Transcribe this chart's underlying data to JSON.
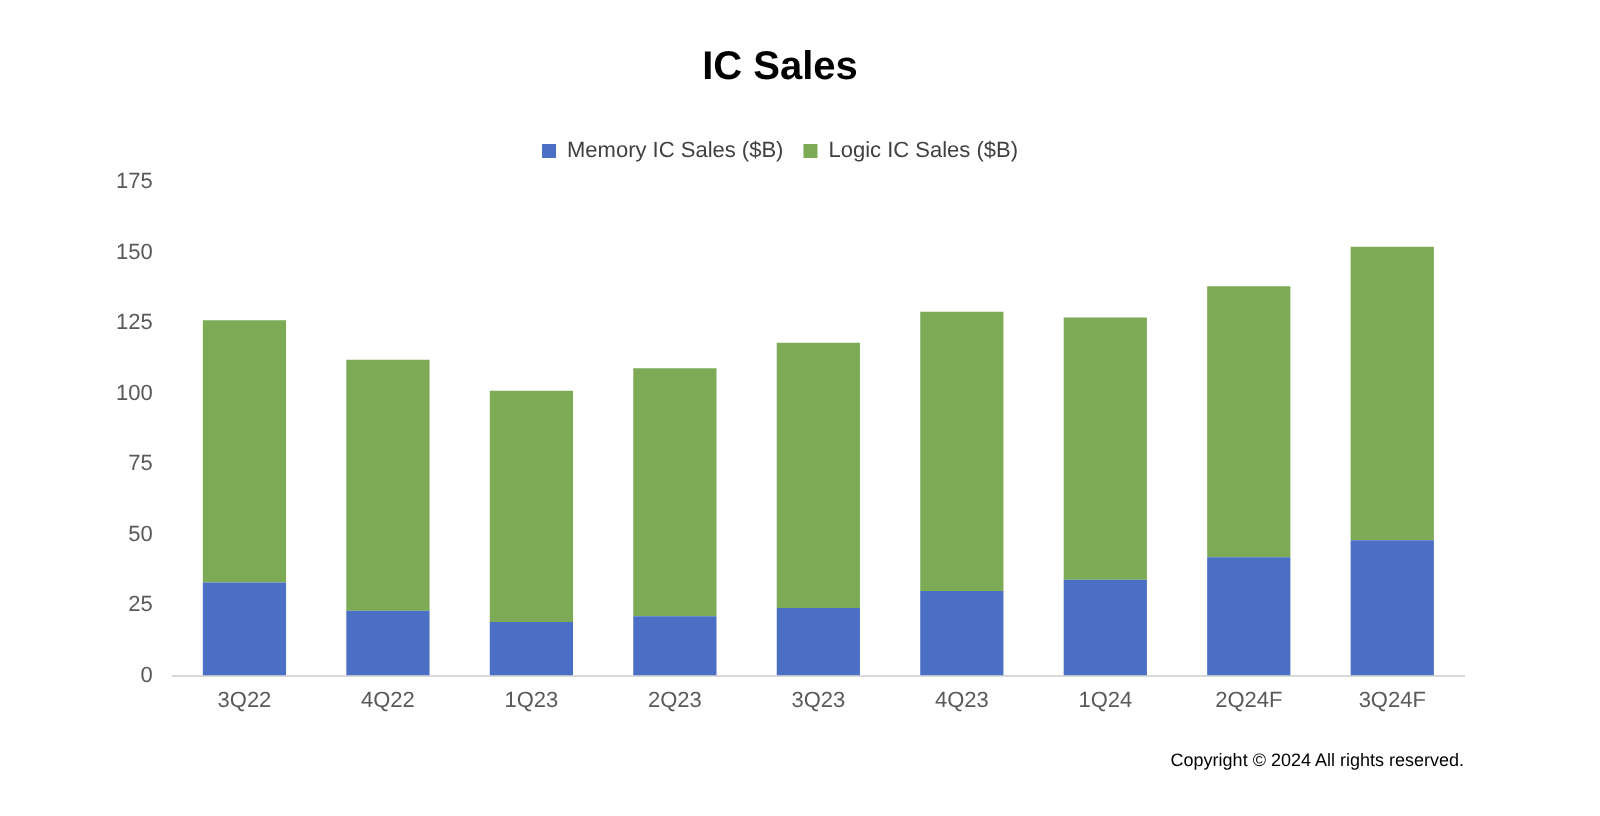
{
  "chart_data": {
    "type": "bar",
    "title": "IC Sales",
    "stacked": true,
    "legend": "top",
    "grid": false,
    "categories": [
      "3Q22",
      "4Q22",
      "1Q23",
      "2Q23",
      "3Q23",
      "4Q23",
      "1Q24",
      "2Q24F",
      "3Q24F"
    ],
    "series": [
      {
        "name": "Memory IC Sales ($B)",
        "color": "#4a6fc4",
        "values": [
          33,
          23,
          19,
          21,
          24,
          30,
          34,
          42,
          48
        ]
      },
      {
        "name": "Logic IC Sales ($B)",
        "color": "#7dab55",
        "values": [
          93,
          89,
          82,
          88,
          94,
          99,
          93,
          96,
          104
        ]
      }
    ],
    "ylim": [
      0,
      175
    ],
    "yticks": [
      0,
      25,
      50,
      75,
      100,
      125,
      150,
      175
    ],
    "annotations": [
      "Copyright © 2024  All rights reserved."
    ]
  }
}
